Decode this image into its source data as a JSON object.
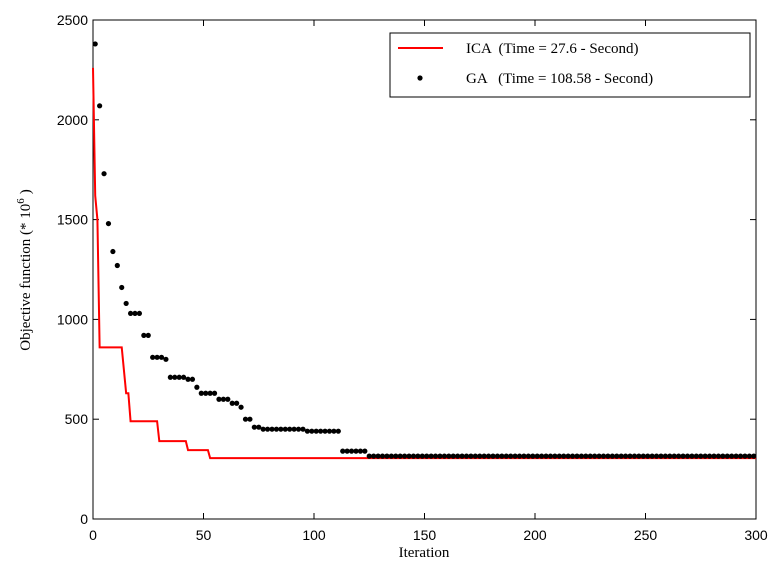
{
  "chart_data": {
    "type": "line",
    "x_label": "Iteration",
    "y_label": {
      "text": "Objective function (* 10",
      "superscript": "6",
      "suffix": ")"
    },
    "xlim": [
      0,
      300
    ],
    "xticks": [
      0,
      50,
      100,
      150,
      200,
      250,
      300
    ],
    "ylim": [
      0,
      2500
    ],
    "yticks": [
      0,
      500,
      1000,
      1500,
      2000,
      2500
    ],
    "grid": false,
    "legend": "top-right",
    "series": [
      {
        "name": "ICA  (Time = 27.6 - Second)",
        "color": "#ff0000",
        "style": "line",
        "x": [
          0,
          1,
          2,
          3,
          13,
          15,
          16,
          17,
          29,
          30,
          42,
          43,
          52,
          53,
          300
        ],
        "values": [
          2260,
          1620,
          1500,
          860,
          860,
          630,
          630,
          490,
          490,
          390,
          390,
          345,
          345,
          305,
          305
        ]
      },
      {
        "name": "GA   (Time = 108.58 - Second)",
        "color": "#000000",
        "style": "dot",
        "x": [
          1,
          3,
          5,
          7,
          9,
          11,
          13,
          15,
          17,
          19,
          21,
          23,
          25,
          27,
          29,
          31,
          33,
          35,
          37,
          39,
          41,
          43,
          45,
          47,
          49,
          51,
          53,
          55,
          57,
          59,
          61,
          63,
          65,
          67,
          69,
          71,
          73,
          75,
          77,
          79,
          81,
          83,
          85,
          87,
          89,
          91,
          93,
          95,
          97,
          99,
          101,
          103,
          105,
          107,
          109,
          111,
          113,
          115,
          117,
          119,
          121,
          123,
          125,
          127,
          129,
          131,
          133,
          135,
          137,
          139,
          141,
          143,
          145,
          147,
          149,
          151,
          153,
          155,
          157,
          159,
          161,
          163,
          165,
          167,
          169,
          171,
          173,
          175,
          177,
          179,
          181,
          183,
          185,
          187,
          189,
          191,
          193,
          195,
          197,
          199,
          201,
          203,
          205,
          207,
          209,
          211,
          213,
          215,
          217,
          219,
          221,
          223,
          225,
          227,
          229,
          231,
          233,
          235,
          237,
          239,
          241,
          243,
          245,
          247,
          249,
          251,
          253,
          255,
          257,
          259,
          261,
          263,
          265,
          267,
          269,
          271,
          273,
          275,
          277,
          279,
          281,
          283,
          285,
          287,
          289,
          291,
          293,
          295,
          297,
          299
        ],
        "values": [
          2380,
          2070,
          1730,
          1480,
          1340,
          1270,
          1160,
          1080,
          1030,
          1030,
          1030,
          920,
          920,
          810,
          810,
          810,
          800,
          710,
          710,
          710,
          710,
          700,
          700,
          660,
          630,
          630,
          630,
          630,
          600,
          600,
          600,
          580,
          580,
          560,
          500,
          500,
          460,
          460,
          450,
          450,
          450,
          450,
          450,
          450,
          450,
          450,
          450,
          450,
          440,
          440,
          440,
          440,
          440,
          440,
          440,
          440,
          340,
          340,
          340,
          340,
          340,
          340,
          315,
          315,
          315,
          315,
          315,
          315,
          315,
          315,
          315,
          315,
          315,
          315,
          315,
          315,
          315,
          315,
          315,
          315,
          315,
          315,
          315,
          315,
          315,
          315,
          315,
          315,
          315,
          315,
          315,
          315,
          315,
          315,
          315,
          315,
          315,
          315,
          315,
          315,
          315,
          315,
          315,
          315,
          315,
          315,
          315,
          315,
          315,
          315,
          315,
          315,
          315,
          315,
          315,
          315,
          315,
          315,
          315,
          315,
          315,
          315,
          315,
          315,
          315,
          315,
          315,
          315,
          315,
          315,
          315,
          315,
          315,
          315,
          315,
          315,
          315,
          315,
          315,
          315,
          315,
          315,
          315,
          315,
          315,
          315,
          315,
          315,
          315,
          315
        ]
      }
    ]
  }
}
